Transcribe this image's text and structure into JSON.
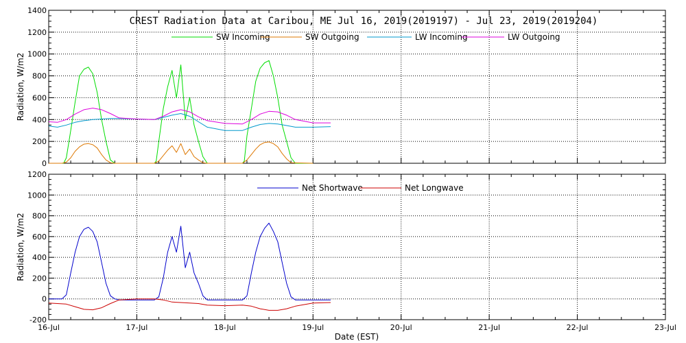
{
  "chart_data": [
    {
      "type": "line",
      "title": "CREST Radiation Data at Caribou, ME   Jul 16, 2019(2019197) - Jul 23, 2019(2019204)",
      "xlabel": "",
      "ylabel": "Radiation, W/m2",
      "xlim": [
        0,
        7
      ],
      "ylim": [
        0,
        1400
      ],
      "yticks": [
        0,
        200,
        400,
        600,
        800,
        1000,
        1200,
        1400
      ],
      "grid": true,
      "legend_position": "top",
      "series": [
        {
          "name": "SW Incoming",
          "color": "#00dd00",
          "x": [
            0,
            0.15,
            0.17,
            0.2,
            0.25,
            0.3,
            0.35,
            0.4,
            0.45,
            0.5,
            0.55,
            0.6,
            0.65,
            0.7,
            0.75,
            0.8,
            1.0,
            1.2,
            1.22,
            1.25,
            1.3,
            1.35,
            1.4,
            1.45,
            1.5,
            1.55,
            1.6,
            1.65,
            1.7,
            1.75,
            1.8,
            1.85,
            2.0,
            2.2,
            2.22,
            2.25,
            2.3,
            2.35,
            2.4,
            2.45,
            2.5,
            2.55,
            2.6,
            2.65,
            2.7,
            2.75,
            2.8,
            2.85,
            3.0
          ],
          "y": [
            0,
            0,
            0,
            50,
            300,
            560,
            800,
            860,
            880,
            820,
            650,
            400,
            200,
            30,
            0,
            0,
            0,
            0,
            20,
            200,
            500,
            700,
            850,
            600,
            900,
            400,
            600,
            350,
            200,
            60,
            0,
            0,
            0,
            0,
            20,
            250,
            500,
            750,
            870,
            920,
            940,
            800,
            600,
            350,
            200,
            50,
            0,
            0,
            0
          ]
        },
        {
          "name": "SW Outgoing",
          "color": "#dd7700",
          "x": [
            0,
            0.15,
            0.2,
            0.25,
            0.3,
            0.35,
            0.4,
            0.45,
            0.5,
            0.55,
            0.6,
            0.65,
            0.7,
            0.75,
            1.0,
            1.2,
            1.25,
            1.3,
            1.35,
            1.4,
            1.45,
            1.5,
            1.55,
            1.6,
            1.65,
            1.7,
            1.75,
            1.8,
            2.0,
            2.2,
            2.25,
            2.3,
            2.35,
            2.4,
            2.45,
            2.5,
            2.55,
            2.6,
            2.65,
            2.7,
            2.75,
            3.0
          ],
          "y": [
            0,
            0,
            10,
            50,
            110,
            150,
            175,
            180,
            170,
            140,
            80,
            30,
            5,
            0,
            0,
            0,
            20,
            70,
            120,
            160,
            100,
            180,
            80,
            130,
            60,
            30,
            5,
            0,
            0,
            0,
            30,
            80,
            130,
            170,
            190,
            195,
            180,
            150,
            90,
            40,
            5,
            0
          ]
        },
        {
          "name": "LW Incoming",
          "color": "#0099cc",
          "x": [
            0,
            0.1,
            0.2,
            0.3,
            0.4,
            0.5,
            0.6,
            0.7,
            0.8,
            1.0,
            1.2,
            1.3,
            1.4,
            1.5,
            1.6,
            1.7,
            1.8,
            2.0,
            2.2,
            2.3,
            2.4,
            2.5,
            2.6,
            2.7,
            2.8,
            3.0,
            3.2
          ],
          "y": [
            340,
            330,
            350,
            375,
            390,
            400,
            405,
            410,
            410,
            405,
            400,
            420,
            440,
            455,
            430,
            380,
            330,
            300,
            300,
            330,
            355,
            365,
            360,
            345,
            330,
            330,
            335
          ]
        },
        {
          "name": "LW Outgoing",
          "color": "#dd00dd",
          "x": [
            0,
            0.1,
            0.2,
            0.3,
            0.4,
            0.5,
            0.6,
            0.7,
            0.8,
            1.0,
            1.2,
            1.3,
            1.4,
            1.5,
            1.6,
            1.7,
            1.8,
            2.0,
            2.2,
            2.3,
            2.4,
            2.5,
            2.6,
            2.7,
            2.8,
            3.0,
            3.2
          ],
          "y": [
            380,
            375,
            400,
            450,
            490,
            505,
            490,
            455,
            415,
            405,
            400,
            430,
            470,
            490,
            470,
            425,
            390,
            365,
            360,
            400,
            450,
            475,
            470,
            440,
            400,
            370,
            370
          ]
        }
      ]
    },
    {
      "type": "line",
      "title": "",
      "xlabel": "Date (EST)",
      "ylabel": "Radiation, W/m2",
      "xlim": [
        0,
        7
      ],
      "ylim": [
        -200,
        1200
      ],
      "yticks": [
        -200,
        0,
        200,
        400,
        600,
        800,
        1000,
        1200
      ],
      "categories": [
        "16-Jul",
        "17-Jul",
        "18-Jul",
        "19-Jul",
        "20-Jul",
        "21-Jul",
        "22-Jul",
        "23-Jul"
      ],
      "grid": true,
      "legend_position": "top",
      "series": [
        {
          "name": "Net Shortwave",
          "color": "#0000cc",
          "x": [
            0,
            0.15,
            0.2,
            0.25,
            0.3,
            0.35,
            0.4,
            0.45,
            0.5,
            0.55,
            0.6,
            0.65,
            0.7,
            0.75,
            0.8,
            1.0,
            1.2,
            1.25,
            1.3,
            1.35,
            1.4,
            1.45,
            1.5,
            1.55,
            1.6,
            1.65,
            1.7,
            1.75,
            1.8,
            1.85,
            2.0,
            2.2,
            2.25,
            2.3,
            2.35,
            2.4,
            2.45,
            2.5,
            2.55,
            2.6,
            2.65,
            2.7,
            2.75,
            2.8,
            3.0,
            3.2
          ],
          "y": [
            0,
            0,
            40,
            250,
            450,
            600,
            670,
            690,
            650,
            550,
            350,
            150,
            30,
            0,
            -10,
            -10,
            -10,
            20,
            200,
            450,
            600,
            450,
            700,
            300,
            450,
            250,
            150,
            30,
            -10,
            -10,
            -10,
            -10,
            30,
            250,
            450,
            600,
            680,
            730,
            650,
            550,
            350,
            150,
            20,
            -10,
            -10,
            -10
          ]
        },
        {
          "name": "Net Longwave",
          "color": "#cc0000",
          "x": [
            0,
            0.1,
            0.2,
            0.3,
            0.4,
            0.5,
            0.6,
            0.7,
            0.8,
            1.0,
            1.2,
            1.3,
            1.4,
            1.5,
            1.6,
            1.7,
            1.8,
            2.0,
            2.2,
            2.3,
            2.4,
            2.5,
            2.6,
            2.7,
            2.8,
            3.0,
            3.2
          ],
          "y": [
            -40,
            -45,
            -50,
            -75,
            -100,
            -105,
            -85,
            -45,
            -10,
            0,
            0,
            -10,
            -30,
            -35,
            -40,
            -45,
            -60,
            -65,
            -60,
            -70,
            -95,
            -110,
            -110,
            -95,
            -70,
            -40,
            -35
          ]
        }
      ]
    }
  ]
}
